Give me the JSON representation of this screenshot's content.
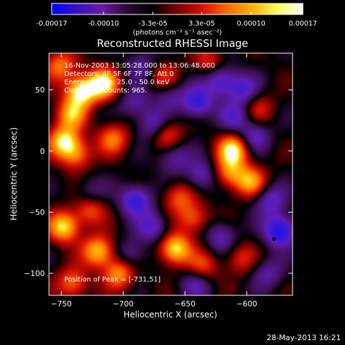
{
  "colorbar": {
    "tick_labels": [
      "-0.00017",
      "-0.00010",
      "-3.3e-05",
      "3.3e-05",
      "0.00010",
      "0.00017"
    ],
    "tick_values": [
      -0.00017,
      -0.0001,
      -3.3e-05,
      3.3e-05,
      0.0001,
      0.00017
    ],
    "range": [
      -0.00017,
      0.00017
    ],
    "units": "(photons cm⁻² s⁻¹ asec⁻²)",
    "colors": [
      "#0000ff",
      "#3a10c8",
      "#6a1aa0",
      "#2a0a3a",
      "#000000",
      "#7a0000",
      "#d81000",
      "#ff6a00",
      "#ffb000",
      "#ffff60",
      "#ffffff"
    ]
  },
  "chart_data": {
    "type": "heatmap",
    "title": "Reconstructed RHESSI Image",
    "xlabel": "Heliocentric X (arcsec)",
    "ylabel": "Heliocentric Y (arcsec)",
    "xlim": [
      -760,
      -563
    ],
    "ylim": [
      -118,
      80
    ],
    "x_ticks": [
      -750,
      -700,
      -650,
      -600
    ],
    "x_tick_labels": [
      "−750",
      "−700",
      "−650",
      "−600"
    ],
    "y_ticks": [
      -100,
      -50,
      0,
      50
    ],
    "y_tick_labels": [
      "−100",
      "−50",
      "0",
      "50"
    ],
    "annotations": [
      "16-Nov-2003 13:05:28.000 to 13:06:48.000",
      "Detectors: 4F 5F 6F 7F 8F, Att 0",
      "Energy Range: 25.0 - 50.0 keV",
      "Clean   Total counts: 965."
    ],
    "peak_label": "Position of Peak = [-731,51]",
    "peak_position": [
      -731,
      51
    ],
    "marker_position": [
      -578,
      -72
    ],
    "sources_bright": [
      {
        "x": -734,
        "y": 49,
        "level": 1.0
      },
      {
        "x": -716,
        "y": 55,
        "level": 0.95
      },
      {
        "x": -751,
        "y": 70,
        "level": 0.6
      },
      {
        "x": -742,
        "y": 30,
        "level": 0.7
      },
      {
        "x": -748,
        "y": 8,
        "level": 0.85
      },
      {
        "x": -738,
        "y": -3,
        "level": 0.6
      },
      {
        "x": -708,
        "y": 10,
        "level": 0.6
      },
      {
        "x": -727,
        "y": -48,
        "level": 0.55
      },
      {
        "x": -748,
        "y": -62,
        "level": 0.9
      },
      {
        "x": -720,
        "y": -82,
        "level": 0.85
      },
      {
        "x": -703,
        "y": -100,
        "level": 0.7
      },
      {
        "x": -741,
        "y": -108,
        "level": 0.6
      },
      {
        "x": -665,
        "y": 14,
        "level": 0.55
      },
      {
        "x": -655,
        "y": -38,
        "level": 0.5
      },
      {
        "x": -643,
        "y": -55,
        "level": 0.55
      },
      {
        "x": -658,
        "y": -80,
        "level": 0.95
      },
      {
        "x": -636,
        "y": -95,
        "level": 0.5
      },
      {
        "x": -611,
        "y": 1,
        "level": 0.95
      },
      {
        "x": -614,
        "y": -18,
        "level": 0.6
      },
      {
        "x": -597,
        "y": -25,
        "level": 0.7
      },
      {
        "x": -590,
        "y": 35,
        "level": 0.35
      },
      {
        "x": -605,
        "y": -88,
        "level": 0.4
      },
      {
        "x": -667,
        "y": 60,
        "level": 0.45
      },
      {
        "x": -630,
        "y": 73,
        "level": 0.4
      }
    ],
    "sources_dark": [
      {
        "x": -573,
        "y": -65,
        "level": 1.0
      },
      {
        "x": -581,
        "y": -40,
        "level": 0.6
      },
      {
        "x": -690,
        "y": -40,
        "level": 0.8
      },
      {
        "x": -676,
        "y": -62,
        "level": 0.6
      },
      {
        "x": -640,
        "y": 40,
        "level": 0.8
      },
      {
        "x": -621,
        "y": 58,
        "level": 0.7
      },
      {
        "x": -603,
        "y": 50,
        "level": 0.6
      },
      {
        "x": -594,
        "y": 12,
        "level": 0.55
      },
      {
        "x": -663,
        "y": 47,
        "level": 0.45
      },
      {
        "x": -675,
        "y": 21,
        "level": 0.6
      },
      {
        "x": -685,
        "y": 70,
        "level": 0.4
      },
      {
        "x": -691,
        "y": 39,
        "level": 0.45
      },
      {
        "x": -637,
        "y": -20,
        "level": 0.55
      },
      {
        "x": -621,
        "y": -70,
        "level": 0.5
      },
      {
        "x": -641,
        "y": -108,
        "level": 0.5
      },
      {
        "x": -694,
        "y": -85,
        "level": 0.45
      },
      {
        "x": -727,
        "y": -35,
        "level": 0.35
      },
      {
        "x": -583,
        "y": -100,
        "level": 0.45
      },
      {
        "x": -659,
        "y": -5,
        "level": 0.5
      },
      {
        "x": -610,
        "y": 28,
        "level": 0.5
      }
    ]
  },
  "timestamp": "28-May-2013 16:21"
}
